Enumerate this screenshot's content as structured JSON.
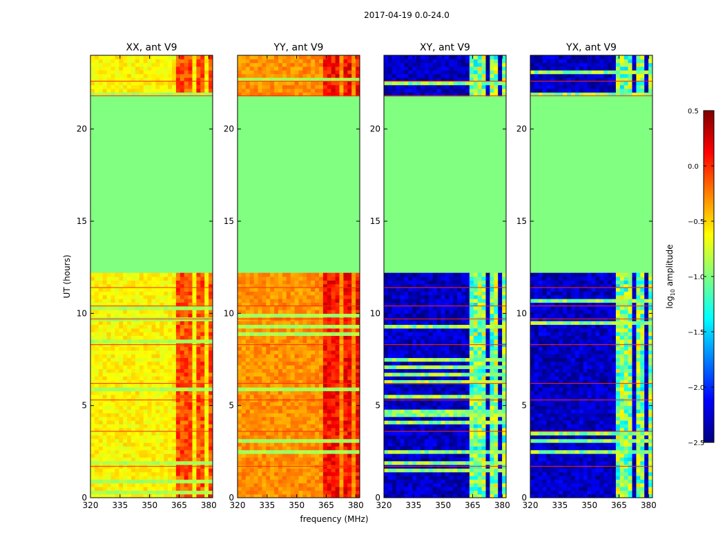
{
  "figure_title": "2017-04-19 0.0-24.0",
  "colorbar": {
    "label": "log10 amplitude",
    "label_base": "log",
    "label_sub": "10",
    "label_rest": " amplitude",
    "min": -2.5,
    "max": 0.5,
    "ticks": [
      -2.5,
      -2.0,
      -1.5,
      -1.0,
      -0.5,
      0.0,
      0.5
    ],
    "tick_labels": [
      "−2.5",
      "−2.0",
      "−1.5",
      "−1.0",
      "−0.5",
      "0.0",
      "0.5"
    ],
    "colormap": "jet"
  },
  "chart_data": {
    "type": "heatmap",
    "xlabel": "frequency (MHz)",
    "ylabel": "UT (hours)",
    "xlim": [
      320,
      382
    ],
    "ylim": [
      0,
      24
    ],
    "xticks": [
      320,
      335,
      350,
      365,
      380
    ],
    "yticks": [
      0,
      5,
      10,
      15,
      20
    ],
    "no_data_hours": [
      12.2,
      21.8
    ],
    "no_data_value": -1.0,
    "strong_rfi_bands_mhz": [
      [
        363,
        367
      ],
      [
        368,
        372
      ],
      [
        374,
        378
      ],
      [
        379,
        382
      ]
    ],
    "panels": [
      {
        "title": "XX, ant V9",
        "baseline": -0.6,
        "band_peak": 0.1,
        "kind": "parallel"
      },
      {
        "title": "YY, ant V9",
        "baseline": -0.3,
        "band_peak": 0.3,
        "kind": "parallel"
      },
      {
        "title": "XY, ant V9",
        "baseline": -2.3,
        "band_peak": -0.5,
        "kind": "cross"
      },
      {
        "title": "YX, ant V9",
        "baseline": -2.3,
        "band_peak": -0.5,
        "kind": "cross"
      }
    ]
  }
}
